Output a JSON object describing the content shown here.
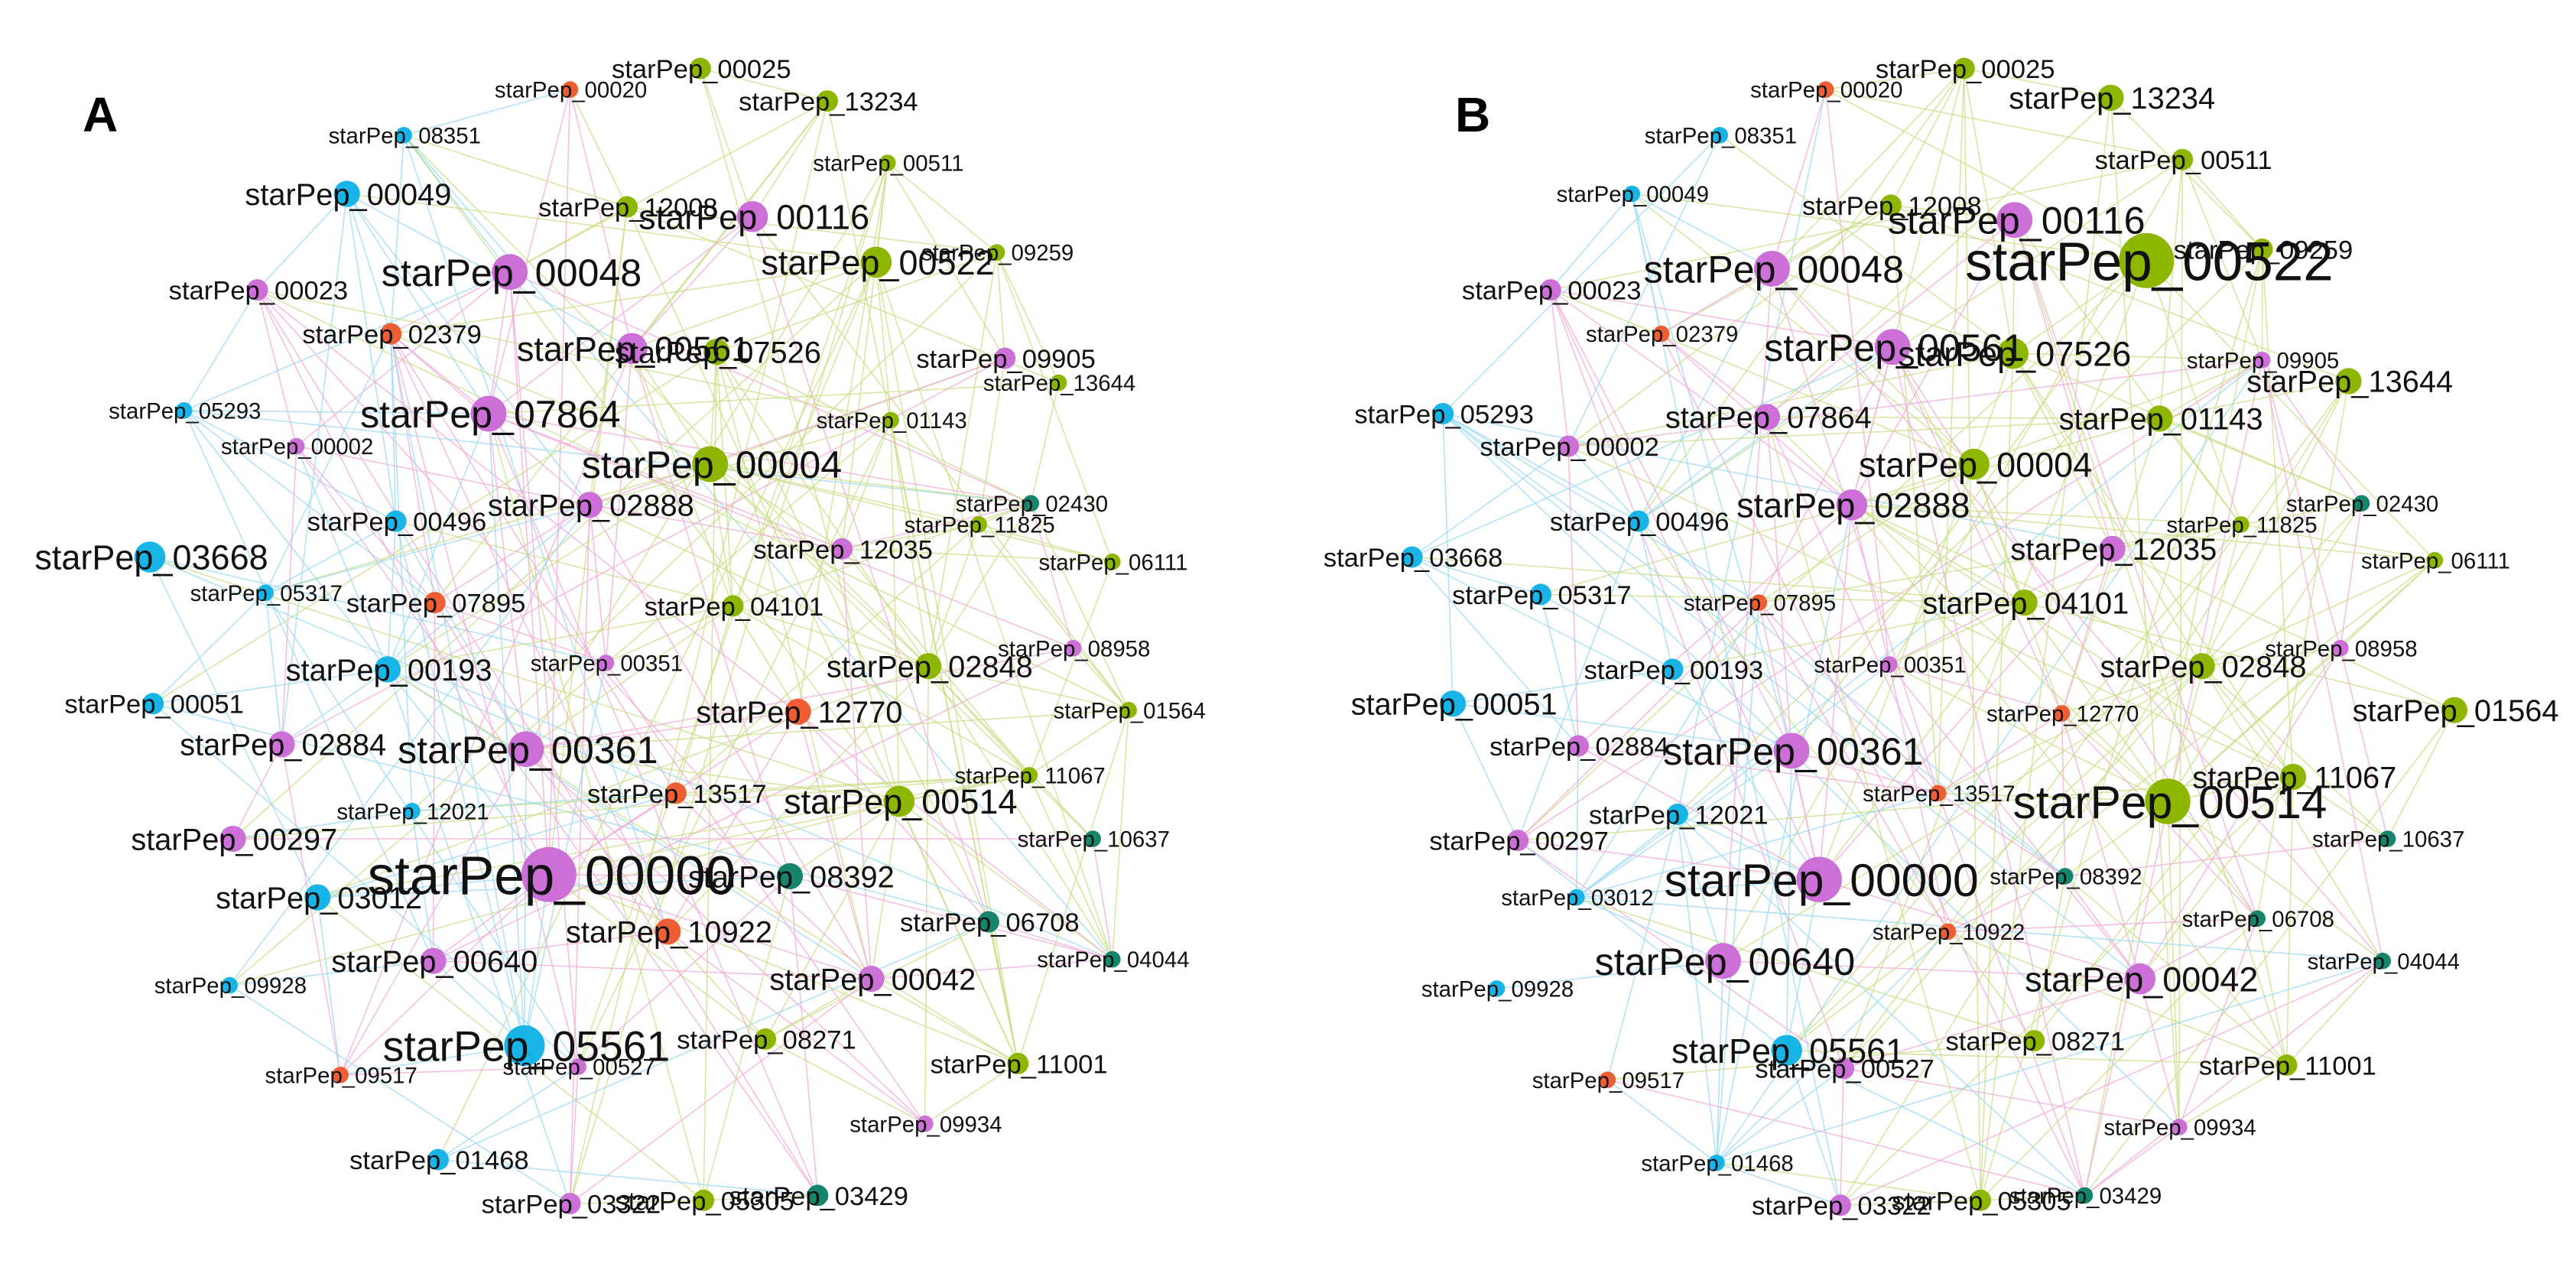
{
  "colors": {
    "purple": "#CC6FD6",
    "green": "#8DB600",
    "blue": "#18B4E8",
    "orange": "#EE5E32",
    "teal": "#16856B",
    "edge_pink": "#F2A9D8",
    "edge_green": "#C9DE85",
    "edge_blue": "#9AD9F2"
  },
  "panels": [
    {
      "id": "A",
      "label": "A",
      "nodes": [
        {
          "label": "starPep_00020",
          "c": "orange",
          "s": 2
        },
        {
          "label": "starPep_00025",
          "c": "green",
          "s": 3
        },
        {
          "label": "starPep_13234",
          "c": "green",
          "s": 3
        },
        {
          "label": "starPep_08351",
          "c": "blue",
          "s": 2
        },
        {
          "label": "starPep_00049",
          "c": "blue",
          "s": 4
        },
        {
          "label": "starPep_00511",
          "c": "green",
          "s": 2
        },
        {
          "label": "starPep_12008",
          "c": "green",
          "s": 3
        },
        {
          "label": "starPep_00116",
          "c": "purple",
          "s": 5
        },
        {
          "label": "starPep_00048",
          "c": "purple",
          "s": 6
        },
        {
          "label": "starPep_00522",
          "c": "green",
          "s": 5
        },
        {
          "label": "starPep_09259",
          "c": "green",
          "s": 2
        },
        {
          "label": "starPep_00023",
          "c": "purple",
          "s": 3
        },
        {
          "label": "starPep_02379",
          "c": "orange",
          "s": 3
        },
        {
          "label": "starPep_00561",
          "c": "purple",
          "s": 5
        },
        {
          "label": "starPep_07526",
          "c": "green",
          "s": 4
        },
        {
          "label": "starPep_09905",
          "c": "purple",
          "s": 3
        },
        {
          "label": "starPep_13644",
          "c": "green",
          "s": 2
        },
        {
          "label": "starPep_05293",
          "c": "blue",
          "s": 2
        },
        {
          "label": "starPep_07864",
          "c": "purple",
          "s": 6
        },
        {
          "label": "starPep_01143",
          "c": "green",
          "s": 2
        },
        {
          "label": "starPep_00002",
          "c": "purple",
          "s": 2
        },
        {
          "label": "starPep_00004",
          "c": "green",
          "s": 6
        },
        {
          "label": "starPep_02430",
          "c": "teal",
          "s": 2
        },
        {
          "label": "starPep_00496",
          "c": "blue",
          "s": 3
        },
        {
          "label": "starPep_02888",
          "c": "purple",
          "s": 4
        },
        {
          "label": "starPep_11825",
          "c": "green",
          "s": 2
        },
        {
          "label": "starPep_12035",
          "c": "purple",
          "s": 3
        },
        {
          "label": "starPep_03668",
          "c": "blue",
          "s": 5
        },
        {
          "label": "starPep_06111",
          "c": "green",
          "s": 2
        },
        {
          "label": "starPep_05317",
          "c": "blue",
          "s": 2
        },
        {
          "label": "starPep_07895",
          "c": "orange",
          "s": 3
        },
        {
          "label": "starPep_04101",
          "c": "green",
          "s": 3
        },
        {
          "label": "starPep_00193",
          "c": "blue",
          "s": 4
        },
        {
          "label": "starPep_00351",
          "c": "purple",
          "s": 2
        },
        {
          "label": "starPep_02848",
          "c": "green",
          "s": 4
        },
        {
          "label": "starPep_08958",
          "c": "purple",
          "s": 2
        },
        {
          "label": "starPep_00051",
          "c": "blue",
          "s": 3
        },
        {
          "label": "starPep_12770",
          "c": "orange",
          "s": 4
        },
        {
          "label": "starPep_01564",
          "c": "green",
          "s": 2
        },
        {
          "label": "starPep_02884",
          "c": "purple",
          "s": 4
        },
        {
          "label": "starPep_00361",
          "c": "purple",
          "s": 6
        },
        {
          "label": "starPep_11067",
          "c": "green",
          "s": 2
        },
        {
          "label": "starPep_13517",
          "c": "orange",
          "s": 3
        },
        {
          "label": "starPep_00514",
          "c": "green",
          "s": 5
        },
        {
          "label": "starPep_12021",
          "c": "blue",
          "s": 2
        },
        {
          "label": "starPep_10637",
          "c": "teal",
          "s": 2
        },
        {
          "label": "starPep_00297",
          "c": "purple",
          "s": 4
        },
        {
          "label": "starPep_00000",
          "c": "purple",
          "s": 10
        },
        {
          "label": "starPep_08392",
          "c": "teal",
          "s": 4
        },
        {
          "label": "starPep_03012",
          "c": "blue",
          "s": 4
        },
        {
          "label": "starPep_10922",
          "c": "orange",
          "s": 4
        },
        {
          "label": "starPep_06708",
          "c": "teal",
          "s": 3
        },
        {
          "label": "starPep_00640",
          "c": "purple",
          "s": 4
        },
        {
          "label": "starPep_00042",
          "c": "purple",
          "s": 4
        },
        {
          "label": "starPep_04044",
          "c": "teal",
          "s": 2
        },
        {
          "label": "starPep_09928",
          "c": "blue",
          "s": 2
        },
        {
          "label": "starPep_05561",
          "c": "blue",
          "s": 7
        },
        {
          "label": "starPep_08271",
          "c": "green",
          "s": 3
        },
        {
          "label": "starPep_00527",
          "c": "purple",
          "s": 2
        },
        {
          "label": "starPep_11001",
          "c": "green",
          "s": 3
        },
        {
          "label": "starPep_09517",
          "c": "orange",
          "s": 2
        },
        {
          "label": "starPep_09934",
          "c": "purple",
          "s": 2
        },
        {
          "label": "starPep_01468",
          "c": "blue",
          "s": 3
        },
        {
          "label": "starPep_03322",
          "c": "purple",
          "s": 3
        },
        {
          "label": "starPep_05305",
          "c": "green",
          "s": 3
        },
        {
          "label": "starPep_03429",
          "c": "teal",
          "s": 3
        }
      ]
    },
    {
      "id": "B",
      "label": "B",
      "nodes": [
        {
          "label": "starPep_00020",
          "c": "orange",
          "s": 2
        },
        {
          "label": "starPep_00025",
          "c": "green",
          "s": 3
        },
        {
          "label": "starPep_13234",
          "c": "green",
          "s": 4
        },
        {
          "label": "starPep_08351",
          "c": "blue",
          "s": 2
        },
        {
          "label": "starPep_00049",
          "c": "blue",
          "s": 2
        },
        {
          "label": "starPep_00511",
          "c": "green",
          "s": 3
        },
        {
          "label": "starPep_12008",
          "c": "green",
          "s": 3
        },
        {
          "label": "starPep_00116",
          "c": "purple",
          "s": 6
        },
        {
          "label": "starPep_00048",
          "c": "purple",
          "s": 6
        },
        {
          "label": "starPep_00522",
          "c": "green",
          "s": 10
        },
        {
          "label": "starPep_09259",
          "c": "green",
          "s": 3
        },
        {
          "label": "starPep_00023",
          "c": "purple",
          "s": 3
        },
        {
          "label": "starPep_02379",
          "c": "orange",
          "s": 2
        },
        {
          "label": "starPep_00561",
          "c": "purple",
          "s": 6
        },
        {
          "label": "starPep_07526",
          "c": "green",
          "s": 5
        },
        {
          "label": "starPep_09905",
          "c": "purple",
          "s": 2
        },
        {
          "label": "starPep_13644",
          "c": "green",
          "s": 4
        },
        {
          "label": "starPep_05293",
          "c": "blue",
          "s": 3
        },
        {
          "label": "starPep_07864",
          "c": "purple",
          "s": 4
        },
        {
          "label": "starPep_01143",
          "c": "green",
          "s": 4
        },
        {
          "label": "starPep_00002",
          "c": "purple",
          "s": 3
        },
        {
          "label": "starPep_00004",
          "c": "green",
          "s": 5
        },
        {
          "label": "starPep_02430",
          "c": "teal",
          "s": 2
        },
        {
          "label": "starPep_00496",
          "c": "blue",
          "s": 3
        },
        {
          "label": "starPep_02888",
          "c": "purple",
          "s": 5
        },
        {
          "label": "starPep_11825",
          "c": "green",
          "s": 2
        },
        {
          "label": "starPep_12035",
          "c": "purple",
          "s": 4
        },
        {
          "label": "starPep_03668",
          "c": "blue",
          "s": 3
        },
        {
          "label": "starPep_06111",
          "c": "green",
          "s": 2
        },
        {
          "label": "starPep_05317",
          "c": "blue",
          "s": 3
        },
        {
          "label": "starPep_07895",
          "c": "orange",
          "s": 2
        },
        {
          "label": "starPep_04101",
          "c": "green",
          "s": 4
        },
        {
          "label": "starPep_00193",
          "c": "blue",
          "s": 3
        },
        {
          "label": "starPep_00351",
          "c": "purple",
          "s": 2
        },
        {
          "label": "starPep_02848",
          "c": "green",
          "s": 4
        },
        {
          "label": "starPep_08958",
          "c": "purple",
          "s": 2
        },
        {
          "label": "starPep_00051",
          "c": "blue",
          "s": 4
        },
        {
          "label": "starPep_12770",
          "c": "orange",
          "s": 2
        },
        {
          "label": "starPep_01564",
          "c": "green",
          "s": 4
        },
        {
          "label": "starPep_02884",
          "c": "purple",
          "s": 3
        },
        {
          "label": "starPep_00361",
          "c": "purple",
          "s": 6
        },
        {
          "label": "starPep_11067",
          "c": "green",
          "s": 4
        },
        {
          "label": "starPep_13517",
          "c": "orange",
          "s": 2
        },
        {
          "label": "starPep_00514",
          "c": "green",
          "s": 8
        },
        {
          "label": "starPep_12021",
          "c": "blue",
          "s": 3
        },
        {
          "label": "starPep_10637",
          "c": "teal",
          "s": 2
        },
        {
          "label": "starPep_00297",
          "c": "purple",
          "s": 3
        },
        {
          "label": "starPep_00000",
          "c": "purple",
          "s": 8
        },
        {
          "label": "starPep_08392",
          "c": "teal",
          "s": 2
        },
        {
          "label": "starPep_03012",
          "c": "blue",
          "s": 2
        },
        {
          "label": "starPep_10922",
          "c": "orange",
          "s": 2
        },
        {
          "label": "starPep_06708",
          "c": "teal",
          "s": 2
        },
        {
          "label": "starPep_00640",
          "c": "purple",
          "s": 6
        },
        {
          "label": "starPep_00042",
          "c": "purple",
          "s": 5
        },
        {
          "label": "starPep_04044",
          "c": "teal",
          "s": 2
        },
        {
          "label": "starPep_09928",
          "c": "blue",
          "s": 2
        },
        {
          "label": "starPep_05561",
          "c": "blue",
          "s": 5
        },
        {
          "label": "starPep_08271",
          "c": "green",
          "s": 3
        },
        {
          "label": "starPep_00527",
          "c": "purple",
          "s": 3
        },
        {
          "label": "starPep_11001",
          "c": "green",
          "s": 3
        },
        {
          "label": "starPep_09517",
          "c": "orange",
          "s": 2
        },
        {
          "label": "starPep_09934",
          "c": "purple",
          "s": 2
        },
        {
          "label": "starPep_01468",
          "c": "blue",
          "s": 2
        },
        {
          "label": "starPep_03322",
          "c": "purple",
          "s": 3
        },
        {
          "label": "starPep_05305",
          "c": "green",
          "s": 3
        },
        {
          "label": "starPep_03429",
          "c": "teal",
          "s": 2
        }
      ]
    }
  ]
}
